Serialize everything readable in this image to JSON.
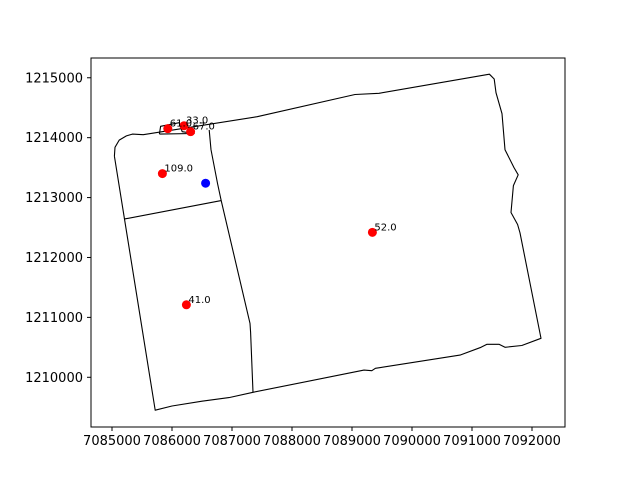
{
  "chart_data": {
    "type": "scatter",
    "title": "",
    "xlabel": "",
    "ylabel": "",
    "grid": false,
    "xlim": [
      7084650,
      7092550
    ],
    "ylim": [
      1209170,
      1215330
    ],
    "x_ticks": [
      7085000,
      7086000,
      7087000,
      7088000,
      7089000,
      7090000,
      7091000,
      7092000
    ],
    "x_tick_labels": [
      "7085000",
      "7086000",
      "7087000",
      "7088000",
      "7089000",
      "7090000",
      "7091000",
      "7092000"
    ],
    "y_ticks": [
      1210000,
      1211000,
      1212000,
      1213000,
      1214000,
      1215000
    ],
    "y_tick_labels": [
      "1210000",
      "1211000",
      "1212000",
      "1213000",
      "1214000",
      "1215000"
    ],
    "boundaries": [
      {
        "name": "outer",
        "points": [
          [
            7085040,
            1213690
          ],
          [
            7085050,
            1213840
          ],
          [
            7085120,
            1213960
          ],
          [
            7085240,
            1214030
          ],
          [
            7085340,
            1214060
          ],
          [
            7085520,
            1214050
          ],
          [
            7087420,
            1214350
          ],
          [
            7089050,
            1214720
          ],
          [
            7089450,
            1214740
          ],
          [
            7091290,
            1215060
          ],
          [
            7091370,
            1214980
          ],
          [
            7091400,
            1214750
          ],
          [
            7091500,
            1214400
          ],
          [
            7091550,
            1213800
          ],
          [
            7091700,
            1213500
          ],
          [
            7091770,
            1213380
          ],
          [
            7091690,
            1213200
          ],
          [
            7091650,
            1212750
          ],
          [
            7091760,
            1212550
          ],
          [
            7091800,
            1212410
          ],
          [
            7092150,
            1210650
          ],
          [
            7091830,
            1210530
          ],
          [
            7091550,
            1210500
          ],
          [
            7091450,
            1210550
          ],
          [
            7091250,
            1210550
          ],
          [
            7091150,
            1210500
          ],
          [
            7090800,
            1210370
          ],
          [
            7089390,
            1210150
          ],
          [
            7089330,
            1210110
          ],
          [
            7089200,
            1210120
          ],
          [
            7087350,
            1209750
          ],
          [
            7086950,
            1209660
          ],
          [
            7086500,
            1209600
          ],
          [
            7086000,
            1209520
          ],
          [
            7085720,
            1209450
          ],
          [
            7085040,
            1213690
          ]
        ]
      },
      {
        "name": "inner-divider",
        "points": [
          [
            7086620,
            1214130
          ],
          [
            7086650,
            1213800
          ],
          [
            7086760,
            1213230
          ],
          [
            7086820,
            1212950
          ],
          [
            7087300,
            1210900
          ],
          [
            7087310,
            1210750
          ],
          [
            7087350,
            1209750
          ]
        ]
      },
      {
        "name": "west-divider",
        "points": [
          [
            7085200,
            1212640
          ],
          [
            7086820,
            1212950
          ]
        ]
      },
      {
        "name": "north-parcel",
        "points": [
          [
            7085790,
            1214060
          ],
          [
            7085810,
            1214190
          ],
          [
            7086120,
            1214250
          ],
          [
            7086170,
            1214100
          ],
          [
            7086370,
            1214070
          ],
          [
            7085790,
            1214060
          ]
        ]
      }
    ],
    "series": [
      {
        "color": "#ff0000",
        "points": [
          {
            "x": 7085930,
            "y": 1214150,
            "label": "61.0"
          },
          {
            "x": 7086200,
            "y": 1214200,
            "label": "33.0"
          },
          {
            "x": 7086310,
            "y": 1214100,
            "label": "67.0"
          },
          {
            "x": 7085840,
            "y": 1213400,
            "label": "109.0"
          },
          {
            "x": 7089340,
            "y": 1212420,
            "label": "52.0"
          },
          {
            "x": 7086240,
            "y": 1211210,
            "label": "41.0"
          }
        ]
      },
      {
        "color": "#0000ff",
        "points": [
          {
            "x": 7086560,
            "y": 1213240,
            "label": ""
          }
        ]
      }
    ]
  }
}
